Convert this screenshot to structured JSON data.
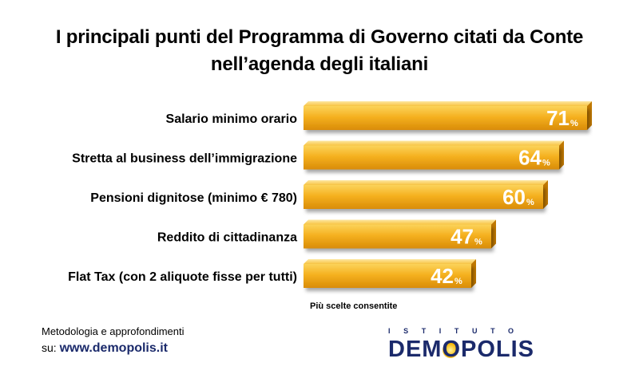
{
  "title": {
    "line1": "I principali punti del Programma di Governo citati da Conte",
    "line2": "nell’agenda degli italiani"
  },
  "chart_data": {
    "type": "bar",
    "orientation": "horizontal",
    "categories": [
      "Salario minimo orario",
      "Stretta al business dell’immigrazione",
      "Pensioni dignitose (minimo € 780)",
      "Reddito di cittadinanza",
      "Flat Tax (con 2 aliquote fisse per tutti)"
    ],
    "values": [
      71,
      64,
      60,
      47,
      42
    ],
    "value_suffix": "%",
    "bar_color": "#f5b120",
    "xlim": [
      0,
      100
    ],
    "title": "I principali punti del Programma di Governo citati da Conte nell’agenda degli italiani",
    "grid": false,
    "legend": "none"
  },
  "note": "Più scelte consentite",
  "footer": {
    "methodology": "Metodologia e approfondimenti",
    "site_prefix": "su:",
    "site_url": "www.demopolis.it"
  },
  "logo": {
    "top": "ISTITUTO",
    "main_pre": "DEM",
    "main_o": "O",
    "main_post": "POLIS"
  }
}
